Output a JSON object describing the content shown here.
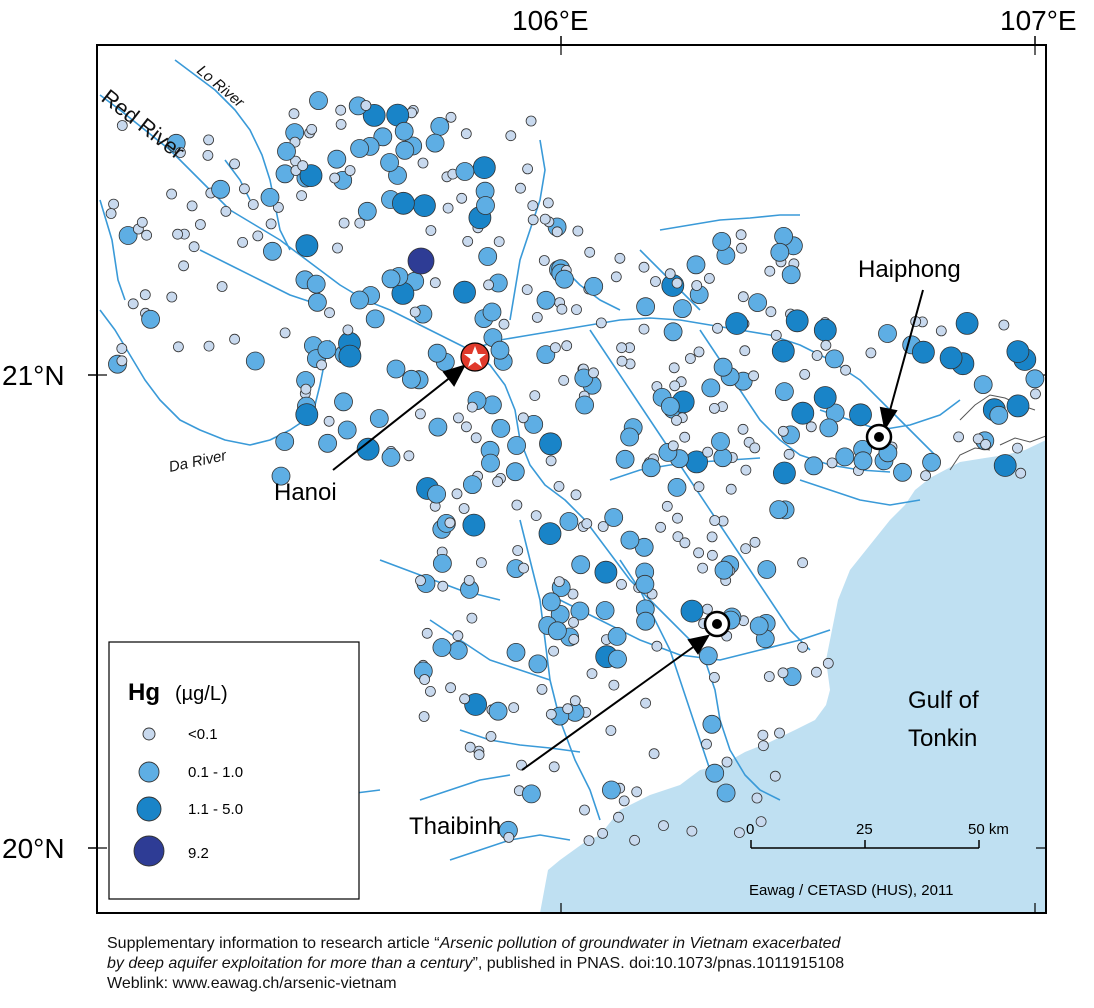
{
  "map": {
    "longitude_labels": [
      "106°E",
      "107°E"
    ],
    "latitude_labels": [
      "21°N",
      "20°N"
    ],
    "rivers": [
      "Red River",
      "Lo River",
      "Da River"
    ],
    "water_body": "Gulf of Tonkin",
    "water_body_lines": [
      "Gulf of",
      "Tonkin"
    ],
    "cities": [
      {
        "name": "Hanoi",
        "marker": "star-icon"
      },
      {
        "name": "Haiphong",
        "marker": "bullseye-icon"
      },
      {
        "name": "Thaibinh",
        "marker": "bullseye-icon"
      }
    ],
    "credit": "Eawag / CETASD (HUS), 2011",
    "colors": {
      "sea": "#bfe0f2",
      "river": "#3a9ad8",
      "class_lt_0_1": "#c8d9ee",
      "class_0_1_1_0": "#5eaee4",
      "class_1_1_5_0": "#1984c8",
      "class_9_2": "#2e3c95",
      "hanoi_marker": "#e03a2c"
    }
  },
  "legend": {
    "title_bold": "Hg",
    "title_unit": "(µg/L)",
    "classes": [
      {
        "label": "<0.1",
        "color": "#c8d9ee"
      },
      {
        "label": "0.1 - 1.0",
        "color": "#5eaee4"
      },
      {
        "label": "1.1 - 5.0",
        "color": "#1984c8"
      },
      {
        "label": "9.2",
        "color": "#2e3c95"
      }
    ]
  },
  "scale_bar": {
    "ticks": [
      "0",
      "25",
      "50 km"
    ]
  },
  "caption": {
    "line1_prefix": "Supplementary information to research article “",
    "line1_italic": "Arsenic pollution of groundwater in Vietnam exacerbated",
    "line2_italic": "by deep aquifer exploitation for more than a century",
    "line2_suffix": "”, published in PNAS. doi:10.1073/pnas.1011915108",
    "line3": "Weblink: www.eawag.ch/arsenic-vietnam"
  }
}
